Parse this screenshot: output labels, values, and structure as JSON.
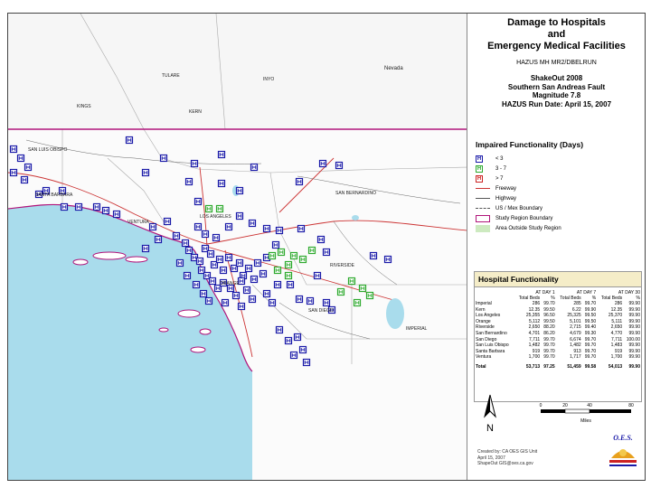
{
  "title_lines": [
    "Damage to Hospitals",
    "and",
    "Emergency Medical Facilities"
  ],
  "subtitle": "HAZUS MH MR2/DBELRUN",
  "scenario_lines": [
    "ShakeOut 2008",
    "Southern San Andreas Fault",
    "Magnitude 7.8",
    "HAZUS Run Date: April 15, 2007"
  ],
  "legend": {
    "title": "Impaired Functionality (Days)",
    "items": [
      {
        "label": "< 3",
        "color": "#1a1aa8",
        "kind": "hospital"
      },
      {
        "label": "3 - 7",
        "color": "#2eaa2e",
        "kind": "hospital"
      },
      {
        "label": "> 7",
        "color": "#cc2222",
        "kind": "hospital"
      },
      {
        "label": "Freeway",
        "color": "#cc3333",
        "kind": "line"
      },
      {
        "label": "Highway",
        "color": "#555555",
        "kind": "line"
      },
      {
        "label": "US / Mex Boundary",
        "color": "#555555",
        "kind": "dash"
      },
      {
        "label": "Study Region Boundary",
        "color": "#b0147a",
        "kind": "box"
      },
      {
        "label": "Area Outside Study Region",
        "color": "#cdeac0",
        "kind": "fill"
      }
    ]
  },
  "table": {
    "title": "Hospital Functionality",
    "groups": [
      "AT DAY 1",
      "AT DAY 7",
      "AT DAY 30"
    ],
    "subheaders": [
      "Total Beds",
      "%",
      "Total Beds",
      "%",
      "Total Beds",
      "%"
    ],
    "rows": [
      {
        "county": "Imperial",
        "values": [
          "286",
          "99.70",
          "285",
          "99.70",
          "286",
          "99.90"
        ]
      },
      {
        "county": "Kern",
        "values": [
          "12.35",
          "99.50",
          "6.22",
          "99.90",
          "12.35",
          "99.90"
        ]
      },
      {
        "county": "Los Angeles",
        "values": [
          "25,355",
          "96.50",
          "25,325",
          "99.50",
          "25,370",
          "99.90"
        ]
      },
      {
        "county": "Orange",
        "values": [
          "5,112",
          "99.50",
          "5,101",
          "99.50",
          "5,111",
          "99.90"
        ]
      },
      {
        "county": "Riverside",
        "values": [
          "2,650",
          "88.20",
          "2,715",
          "99.40",
          "2,650",
          "99.90"
        ]
      },
      {
        "county": "San Bernardino",
        "values": [
          "4,701",
          "86.20",
          "4,679",
          "99.30",
          "4,770",
          "99.90"
        ]
      },
      {
        "county": "San Diego",
        "values": [
          "7,711",
          "99.70",
          "6,674",
          "99.70",
          "7,711",
          "100.00"
        ]
      },
      {
        "county": "San Luis Obispo",
        "values": [
          "1,482",
          "99.70",
          "1,482",
          "99.70",
          "1,483",
          "99.90"
        ]
      },
      {
        "county": "Santa Barbara",
        "values": [
          "919",
          "99.70",
          "913",
          "99.70",
          "919",
          "99.90"
        ]
      },
      {
        "county": "Ventura",
        "values": [
          "1,700",
          "99.70",
          "1,717",
          "99.70",
          "1,700",
          "99.90"
        ]
      }
    ],
    "total": {
      "county": "Total",
      "values": [
        "53,713",
        "97.25",
        "51,459",
        "99.58",
        "54,013",
        "99.90"
      ]
    }
  },
  "scale": {
    "ticks": [
      "0",
      "20",
      "40",
      "80"
    ],
    "unit": "Miles"
  },
  "north_label": "N",
  "credits_lines": [
    "Created by: CA OES GIS Unit",
    "April 15, 2007",
    "ShapeOut GIS@oes.ca.gov"
  ],
  "logo_text": "O.E.S.",
  "map_labels": [
    {
      "text": "Nevada"
    },
    {
      "text": "INYO"
    },
    {
      "text": "KERN"
    },
    {
      "text": "TULARE"
    },
    {
      "text": "KINGS"
    },
    {
      "text": "SAN LUIS OBISPO"
    },
    {
      "text": "SANTA BARBARA"
    },
    {
      "text": "VENTURA"
    },
    {
      "text": "LOS ANGELES"
    },
    {
      "text": "SAN BERNARDINO"
    },
    {
      "text": "ORANGE"
    },
    {
      "text": "RIVERSIDE"
    },
    {
      "text": "SAN DIEGO"
    },
    {
      "text": "IMPERIAL"
    }
  ],
  "colors": {
    "hospital_low": "#1a1aa8",
    "hospital_mid": "#2eaa2e",
    "hospital_high": "#cc2222",
    "ocean": "#a9dcec",
    "study_boundary": "#b0147a",
    "outside": "#cdeac0",
    "freeway": "#cc3333"
  }
}
